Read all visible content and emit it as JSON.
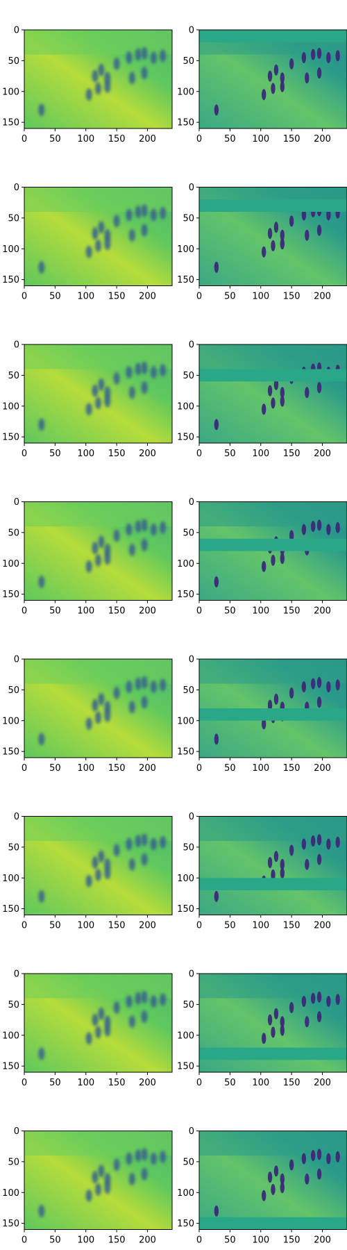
{
  "figure": {
    "rows": 8,
    "cols": 2,
    "background": "#ffffff"
  },
  "chart_data": {
    "type": "heatmap",
    "colormap": "viridis",
    "description_per_panel": "image panel (imshow)",
    "image_size": {
      "width": 240,
      "height": 160
    },
    "xlim": [
      0,
      240
    ],
    "ylim": [
      160,
      0
    ],
    "x_ticks": [
      0,
      50,
      100,
      150,
      200
    ],
    "y_ticks": [
      0,
      50,
      100,
      150
    ],
    "panels": [
      {
        "row": 1,
        "col": 1,
        "kind": "smooth",
        "band": null
      },
      {
        "row": 1,
        "col": 2,
        "kind": "detail",
        "band": [
          0,
          20
        ]
      },
      {
        "row": 2,
        "col": 1,
        "kind": "smooth",
        "band": null
      },
      {
        "row": 2,
        "col": 2,
        "kind": "detail",
        "band": [
          20,
          40
        ]
      },
      {
        "row": 3,
        "col": 1,
        "kind": "smooth",
        "band": null
      },
      {
        "row": 3,
        "col": 2,
        "kind": "detail",
        "band": [
          40,
          60
        ]
      },
      {
        "row": 4,
        "col": 1,
        "kind": "smooth",
        "band": null
      },
      {
        "row": 4,
        "col": 2,
        "kind": "detail",
        "band": [
          60,
          80
        ]
      },
      {
        "row": 5,
        "col": 1,
        "kind": "smooth",
        "band": null
      },
      {
        "row": 5,
        "col": 2,
        "kind": "detail",
        "band": [
          80,
          100
        ]
      },
      {
        "row": 6,
        "col": 1,
        "kind": "smooth",
        "band": null
      },
      {
        "row": 6,
        "col": 2,
        "kind": "detail",
        "band": [
          100,
          120
        ]
      },
      {
        "row": 7,
        "col": 1,
        "kind": "smooth",
        "band": null
      },
      {
        "row": 7,
        "col": 2,
        "kind": "detail",
        "band": [
          120,
          140
        ]
      },
      {
        "row": 8,
        "col": 1,
        "kind": "smooth",
        "band": null
      },
      {
        "row": 8,
        "col": 2,
        "kind": "detail",
        "band": [
          140,
          160
        ]
      }
    ],
    "figures_people": [
      [
        115,
        75
      ],
      [
        125,
        65
      ],
      [
        135,
        78
      ],
      [
        150,
        55
      ],
      [
        170,
        45
      ],
      [
        185,
        40
      ],
      [
        195,
        38
      ],
      [
        175,
        78
      ],
      [
        195,
        70
      ],
      [
        105,
        105
      ],
      [
        120,
        95
      ],
      [
        135,
        92
      ],
      [
        210,
        45
      ],
      [
        225,
        42
      ],
      [
        28,
        130
      ]
    ],
    "colors": {
      "smooth_base": "#5fc85e",
      "smooth_light": "#b6dc3b",
      "smooth_dark": "#34608d",
      "detail_base": "#2a9a8a",
      "detail_light": "#64c46a",
      "detail_dark": "#3b2a78",
      "band": "#29a887"
    }
  }
}
